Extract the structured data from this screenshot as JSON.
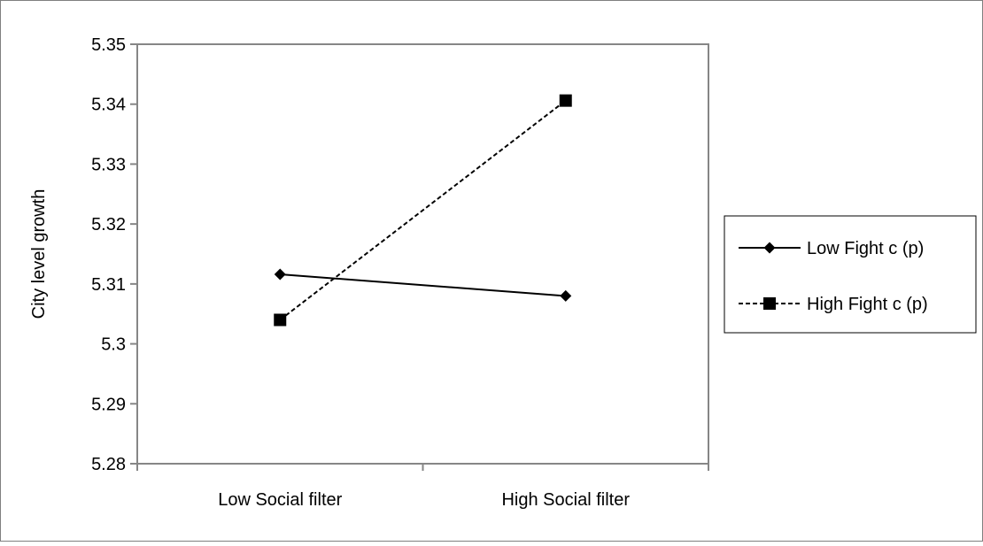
{
  "chart_data": {
    "type": "line",
    "title": "",
    "xlabel": "",
    "ylabel": "City level growth",
    "categories": [
      "Low Social filter",
      "High Social filter"
    ],
    "ylim": [
      5.28,
      5.35
    ],
    "yticks": [
      5.35,
      5.34,
      5.33,
      5.32,
      5.31,
      5.3,
      5.29,
      5.28
    ],
    "ytick_labels": [
      "5.35",
      "5.34",
      "5.33",
      "5.32",
      "5.31",
      "5.3",
      "5.29",
      "5.28"
    ],
    "grid": false,
    "legend": "right",
    "series": [
      {
        "name": "Low Fight c (p)",
        "values": [
          5.3116,
          5.308
        ],
        "marker": "diamond",
        "line": "solid",
        "color": "#000000"
      },
      {
        "name": "High Fight c (p)",
        "values": [
          5.304,
          5.3406
        ],
        "marker": "square",
        "line": "dashed",
        "color": "#000000"
      }
    ]
  }
}
